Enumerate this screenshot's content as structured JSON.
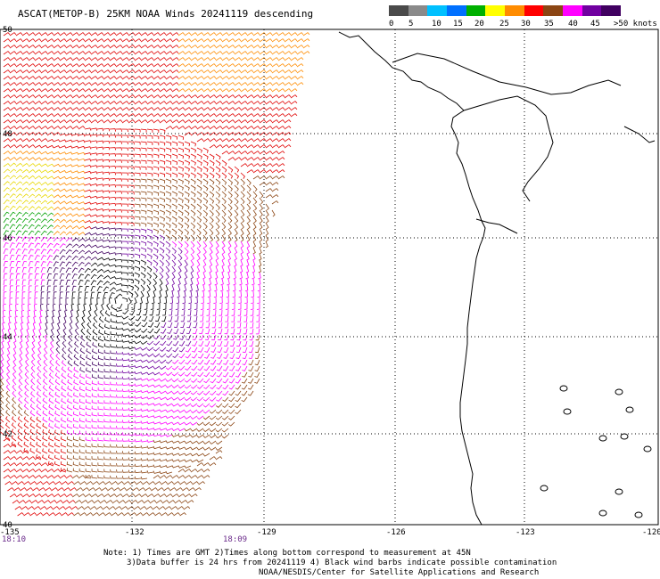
{
  "title": "ASCAT(METOP-B) 25KM NOAA Winds 20241119 descending",
  "colorbar": {
    "labels": [
      "0",
      "5",
      "10",
      "15",
      "20",
      "25",
      "30",
      "35",
      "40",
      "45",
      ">50 knots"
    ],
    "colors": [
      "#4a4a4a",
      "#8a8a8a",
      "#00c0ff",
      "#0070ff",
      "#00b000",
      "#ffff00",
      "#ff8c00",
      "#ff0000",
      "#8b4513",
      "#ff00ff",
      "#7000a0",
      "#400060"
    ]
  },
  "axes": {
    "lat_labels": [
      "50",
      "48",
      "46",
      "44",
      "42",
      "40"
    ],
    "lon_labels": [
      "-135",
      "-132",
      "-129",
      "-126",
      "-123",
      "-120"
    ]
  },
  "times": {
    "start": "18:10",
    "end": "18:09"
  },
  "notes": [
    "Note: 1) Times are GMT 2)Times along bottom correspond to measurement at 45N",
    "3)Data buffer is 24 hrs from 20241119 4) Black wind barbs indicate possible contamination",
    "NOAA/NESDIS/Center for Satellite Applications and Research"
  ]
}
